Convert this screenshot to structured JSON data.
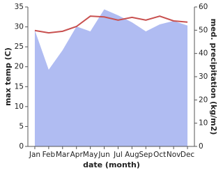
{
  "chart_data": {
    "type": "line-area",
    "x_label": "date (month)",
    "y_label": "max temp (C)",
    "y2_label": "med. precipitation (kg/m2)",
    "categories": [
      "Jan",
      "Feb",
      "Mar",
      "Apr",
      "May",
      "Jun",
      "Jul",
      "Aug",
      "Sep",
      "Oct",
      "Nov",
      "Dec"
    ],
    "series": [
      {
        "name": "med. precipitation",
        "kind": "area",
        "axis": "y2",
        "color": "#b0bcf2",
        "values": [
          50,
          33,
          41.4,
          51.6,
          49.5,
          59,
          56.4,
          53.4,
          49.5,
          52.5,
          54,
          52
        ]
      },
      {
        "name": "max temp",
        "kind": "line",
        "axis": "y",
        "color": "#c8504f",
        "values": [
          29.1,
          28.5,
          28.9,
          30.1,
          32.7,
          32.5,
          31.7,
          32.4,
          31.7,
          32.7,
          31.5,
          31.2
        ]
      }
    ],
    "ylim": [
      0,
      35
    ],
    "yticks": [
      0,
      5,
      10,
      15,
      20,
      25,
      30,
      35
    ],
    "y2lim": [
      0,
      60
    ],
    "y2ticks": [
      0,
      10,
      20,
      30,
      40,
      50,
      60
    ]
  }
}
